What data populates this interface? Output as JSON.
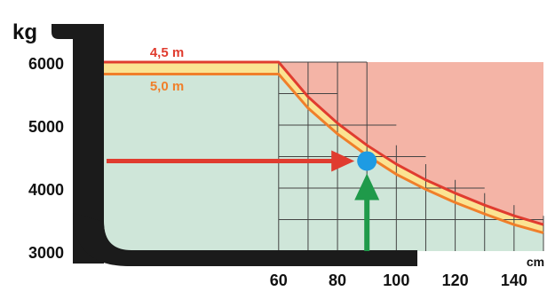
{
  "chart_data": {
    "type": "line",
    "title": "",
    "ylabel": "kg",
    "xlabel": "cm",
    "xlim": [
      0,
      150
    ],
    "ylim": [
      3000,
      6000
    ],
    "x_ticks": [
      60,
      80,
      100,
      120,
      140
    ],
    "x_tick_labels": [
      "60",
      "80",
      "100",
      "120",
      "140"
    ],
    "y_ticks": [
      3000,
      4000,
      5000,
      6000
    ],
    "y_tick_labels": [
      "3000",
      "4000",
      "5000",
      "6000"
    ],
    "grid": true,
    "legend": "inline labels on curves",
    "series": [
      {
        "name": "4,5 m",
        "color": "#e03c2f",
        "x": [
          0,
          60,
          70,
          80,
          90,
          100,
          110,
          120,
          130,
          140,
          150
        ],
        "y": [
          6000,
          6000,
          5450,
          5030,
          4680,
          4380,
          4130,
          3920,
          3730,
          3560,
          3420
        ]
      },
      {
        "name": "5,0 m",
        "color": "#f07f2a",
        "x": [
          0,
          60,
          70,
          80,
          90,
          100,
          110,
          120,
          130,
          140,
          150
        ],
        "y": [
          5810,
          5810,
          5270,
          4860,
          4520,
          4220,
          3980,
          3770,
          3590,
          3420,
          3290
        ]
      }
    ],
    "annotations": [
      {
        "type": "point",
        "x": 90,
        "y": 4430,
        "color": "#1e9be3"
      },
      {
        "type": "arrow",
        "direction": "right",
        "at_y": 4430,
        "from_x": 0,
        "to_x": 90,
        "color": "#e03c2f"
      },
      {
        "type": "arrow",
        "direction": "up",
        "at_x": 90,
        "from_y": 3000,
        "to_y": 4430,
        "color": "#1f9a4a"
      }
    ],
    "colors": {
      "safe_area": "#cfe6d9",
      "unsafe_area": "#f4b4a6",
      "band_fill": "#fbe392",
      "frame": "#1b1b1b",
      "grid": "#444444"
    }
  }
}
